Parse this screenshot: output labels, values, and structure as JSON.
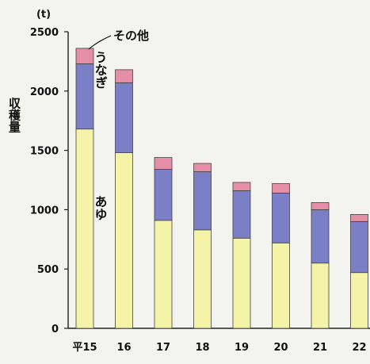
{
  "chart_data": {
    "type": "bar",
    "stacked": true,
    "unit": "(t)",
    "ylabel": "収穫量",
    "ylim": [
      0,
      2500
    ],
    "yticks": [
      0,
      500,
      1000,
      1500,
      2000,
      2500
    ],
    "categories": [
      "平15",
      "16",
      "17",
      "18",
      "19",
      "20",
      "21",
      "22"
    ],
    "series": [
      {
        "name": "あゆ",
        "color": "#f5f3a8",
        "values": [
          1680,
          1480,
          910,
          830,
          760,
          720,
          550,
          470
        ]
      },
      {
        "name": "うなぎ",
        "color": "#7b7fc6",
        "values": [
          550,
          590,
          430,
          490,
          400,
          420,
          450,
          430
        ]
      },
      {
        "name": "その他",
        "color": "#e58ea8",
        "values": [
          130,
          110,
          100,
          70,
          70,
          80,
          60,
          60
        ]
      }
    ],
    "annotations": {
      "other": "その他",
      "eel": "うなぎ",
      "ayu": "あゆ"
    }
  }
}
